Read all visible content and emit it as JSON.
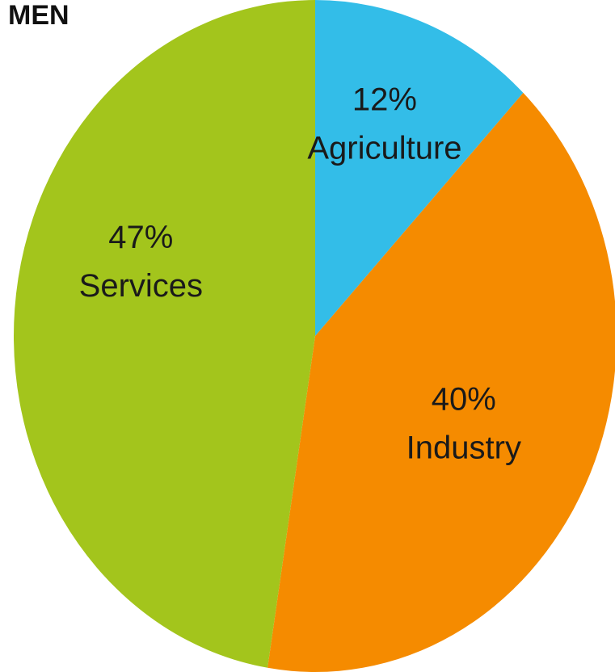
{
  "chart_data": {
    "type": "pie",
    "title": "MEN",
    "slices": [
      {
        "label": "Agriculture",
        "value": 12,
        "value_label": "12%",
        "color": "#33bde8"
      },
      {
        "label": "Industry",
        "value": 40,
        "value_label": "40%",
        "color": "#f58b00"
      },
      {
        "label": "Services",
        "value": 47,
        "value_label": "47%",
        "color": "#a3c51c"
      }
    ],
    "start_angle_deg": 0,
    "direction": "clockwise",
    "legend": "none",
    "labels_inside": true
  }
}
